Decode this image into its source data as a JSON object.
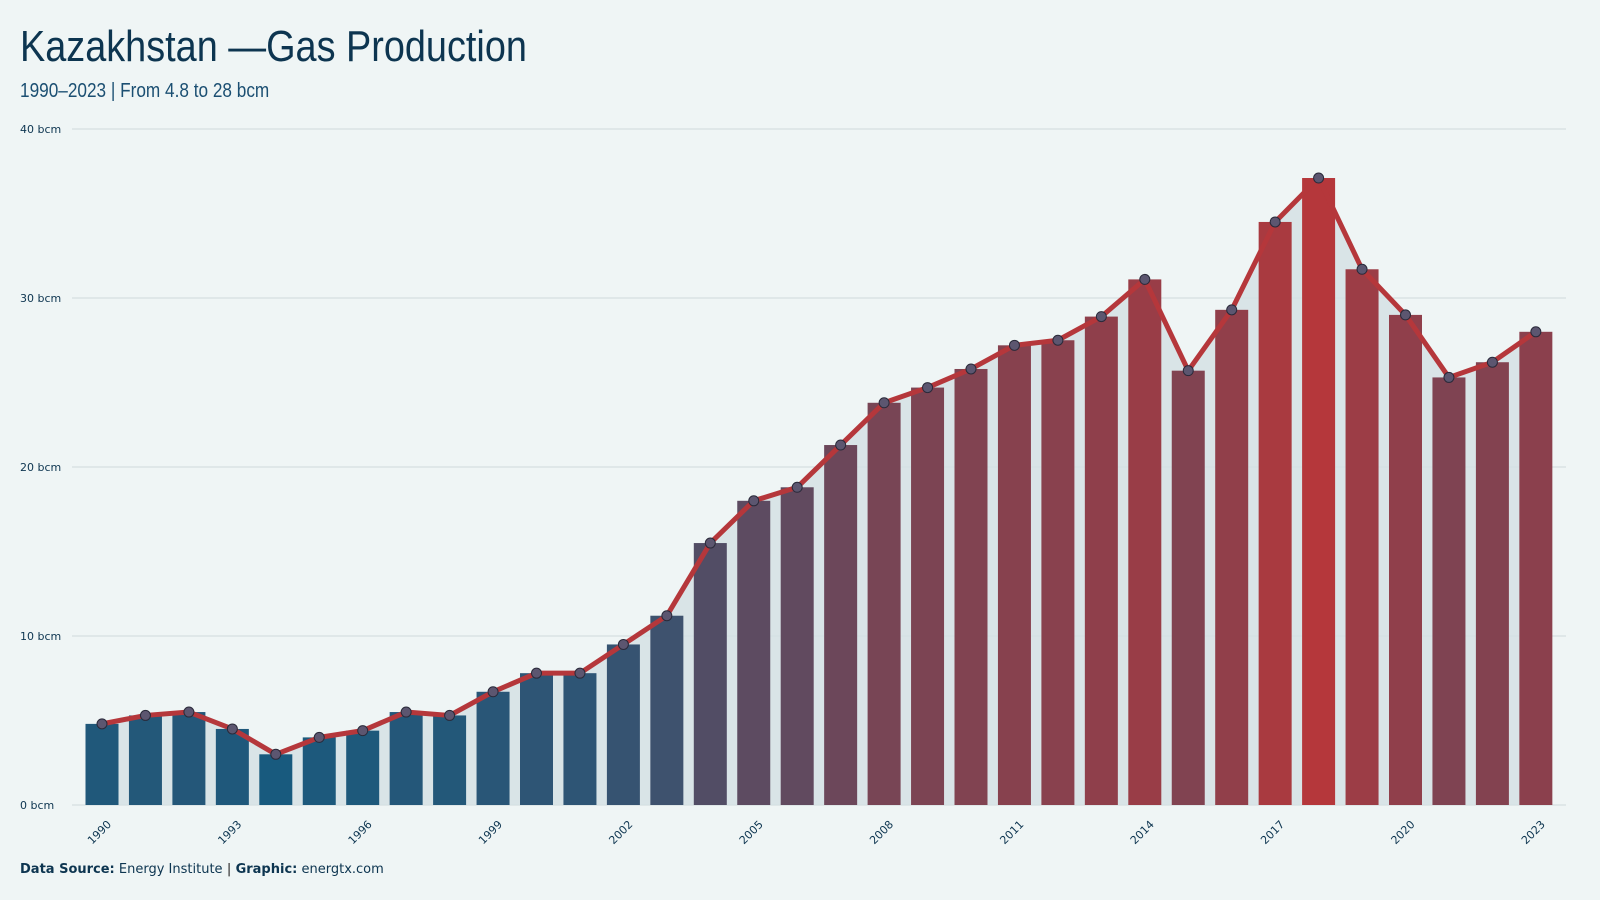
{
  "title": "Kazakhstan —Gas Production",
  "subtitle": "1990–2023 | From 4.8 to 28 bcm",
  "footer": {
    "source_label": "Data Source:",
    "source_value": "Energy Institute",
    "separator": "|",
    "graphic_label": "Graphic:",
    "graphic_value": "energtx.com"
  },
  "colors": {
    "background": "#eff5f5",
    "line": "#b5373b",
    "bar_low": "#185a7e",
    "bar_high": "#b5373b",
    "marker_fill": "#5c5670"
  },
  "chart_data": {
    "type": "bar",
    "overlay": "line",
    "categories": [
      "1990",
      "1991",
      "1992",
      "1993",
      "1994",
      "1995",
      "1996",
      "1997",
      "1998",
      "1999",
      "2000",
      "2001",
      "2002",
      "2003",
      "2004",
      "2005",
      "2006",
      "2007",
      "2008",
      "2009",
      "2010",
      "2011",
      "2012",
      "2013",
      "2014",
      "2015",
      "2016",
      "2017",
      "2018",
      "2019",
      "2020",
      "2021",
      "2022",
      "2023"
    ],
    "values": [
      4.8,
      5.3,
      5.5,
      4.5,
      3.0,
      4.0,
      4.4,
      5.5,
      5.3,
      6.7,
      7.8,
      7.8,
      9.5,
      11.2,
      15.5,
      18.0,
      18.8,
      21.3,
      23.8,
      24.7,
      25.8,
      27.2,
      27.5,
      28.9,
      31.1,
      25.7,
      29.3,
      34.5,
      37.1,
      31.7,
      29.0,
      25.3,
      26.2,
      28.0
    ],
    "x_tick_labels": [
      "1990",
      "1993",
      "1996",
      "1999",
      "2002",
      "2005",
      "2008",
      "2011",
      "2014",
      "2017",
      "2020",
      "2023"
    ],
    "y_ticks": [
      0,
      10,
      20,
      30,
      40
    ],
    "y_tick_labels": [
      "0 bcm",
      "10 bcm",
      "20 bcm",
      "30 bcm",
      "40 bcm"
    ],
    "ylim": [
      0,
      40
    ],
    "grid": true,
    "legend": "none"
  }
}
